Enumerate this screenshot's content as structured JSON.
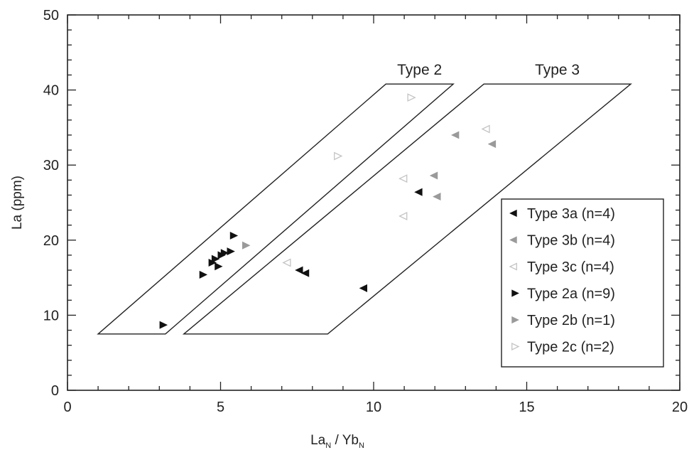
{
  "chart_data": {
    "type": "scatter",
    "title": "",
    "xlabel": {
      "base1": "La",
      "sub1": "N",
      "sep": " / ",
      "base2": "Yb",
      "sub2": "N"
    },
    "ylabel": "La (ppm)",
    "xlim": [
      0,
      20
    ],
    "ylim": [
      0,
      50
    ],
    "x_ticks": [
      0,
      5,
      10,
      15,
      20
    ],
    "x_tick_labels": [
      "0",
      "5",
      "10",
      "15",
      "20"
    ],
    "y_ticks": [
      0,
      10,
      20,
      30,
      40,
      50
    ],
    "y_tick_labels": [
      "0",
      "10",
      "20",
      "30",
      "40",
      "50"
    ],
    "grid": false,
    "legend_position": "right",
    "regions": [
      {
        "label": "Type 2",
        "polygon": [
          [
            1.0,
            7.5
          ],
          [
            3.2,
            7.5
          ],
          [
            12.6,
            40.8
          ],
          [
            10.4,
            40.8
          ]
        ]
      },
      {
        "label": "Type 3",
        "polygon": [
          [
            3.8,
            7.5
          ],
          [
            8.5,
            7.5
          ],
          [
            18.4,
            40.8
          ],
          [
            13.6,
            40.8
          ]
        ]
      }
    ],
    "series": [
      {
        "name": "Type 3a (n=4)",
        "marker": "left",
        "color": "#111111",
        "points": [
          [
            7.6,
            16.0
          ],
          [
            7.8,
            15.6
          ],
          [
            9.7,
            13.6
          ],
          [
            11.5,
            26.4
          ]
        ]
      },
      {
        "name": "Type 3b (n=4)",
        "marker": "left",
        "color": "#9a9a9a",
        "points": [
          [
            12.0,
            28.6
          ],
          [
            12.1,
            25.8
          ],
          [
            12.7,
            34.0
          ],
          [
            13.9,
            32.8
          ]
        ]
      },
      {
        "name": "Type 3c (n=4)",
        "marker": "left-open",
        "color": "#c4c4c4",
        "points": [
          [
            7.2,
            17.0
          ],
          [
            11.0,
            28.2
          ],
          [
            11.0,
            23.2
          ],
          [
            13.7,
            34.8
          ]
        ]
      },
      {
        "name": "Type 2a (n=9)",
        "marker": "right",
        "color": "#111111",
        "points": [
          [
            3.1,
            8.7
          ],
          [
            4.4,
            15.4
          ],
          [
            4.7,
            17.0
          ],
          [
            4.8,
            17.5
          ],
          [
            4.9,
            16.5
          ],
          [
            5.0,
            18.0
          ],
          [
            5.1,
            18.3
          ],
          [
            5.3,
            18.5
          ],
          [
            5.4,
            20.6
          ]
        ]
      },
      {
        "name": "Type 2b (n=1)",
        "marker": "right",
        "color": "#9a9a9a",
        "points": [
          [
            5.8,
            19.3
          ]
        ]
      },
      {
        "name": "Type 2c (n=2)",
        "marker": "right-open",
        "color": "#c4c4c4",
        "points": [
          [
            8.8,
            31.2
          ],
          [
            11.2,
            39.0
          ]
        ]
      }
    ]
  }
}
